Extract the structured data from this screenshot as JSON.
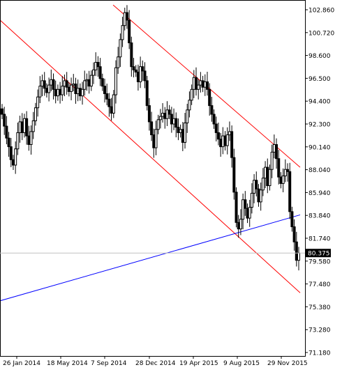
{
  "chart_data": {
    "type": "candlestick",
    "title": "",
    "xlabel": "",
    "ylabel": "",
    "ylim": [
      71.18,
      103.86
    ],
    "grid": false,
    "x_tick_labels": [
      "26 Jan 2014",
      "18 May 2014",
      "7 Sep 2014",
      "28 Dec 2014",
      "19 Apr 2015",
      "9 Aug 2015",
      "29 Nov 2015"
    ],
    "y_tick_labels": [
      "102.860",
      "100.720",
      "98.600",
      "96.500",
      "94.400",
      "92.300",
      "90.140",
      "88.040",
      "85.940",
      "83.840",
      "81.740",
      "79.580",
      "77.480",
      "75.380",
      "73.280",
      "71.180"
    ],
    "y_tick_values": [
      102.86,
      100.72,
      98.6,
      96.5,
      94.4,
      92.3,
      90.14,
      88.04,
      85.94,
      83.84,
      81.74,
      79.58,
      77.48,
      75.38,
      73.28,
      71.18
    ],
    "last_price": 80.375,
    "last_price_label": "80.375",
    "candle_colors": {
      "bull": "#ffffff",
      "bear": "#000000",
      "outline": "#000000"
    },
    "closes": [
      93.2,
      92.1,
      91.0,
      90.2,
      89.0,
      88.5,
      90.0,
      91.5,
      92.5,
      91.5,
      92.8,
      91.2,
      90.4,
      91.6,
      92.6,
      93.8,
      94.8,
      95.8,
      96.3,
      95.6,
      95.2,
      95.9,
      96.4,
      95.5,
      94.9,
      95.5,
      95.0,
      95.8,
      96.3,
      95.7,
      95.3,
      95.9,
      96.0,
      95.1,
      95.6,
      94.9,
      95.5,
      96.3,
      96.4,
      95.8,
      96.8,
      97.3,
      98.0,
      97.6,
      96.5,
      95.8,
      95.1,
      94.6,
      93.9,
      93.3,
      95.0,
      97.5,
      98.5,
      100.1,
      101.4,
      102.6,
      101.9,
      99.8,
      97.6,
      97.3,
      97.1,
      96.2,
      97.6,
      97.2,
      96.3,
      94.0,
      92.5,
      91.3,
      90.1,
      91.8,
      92.7,
      93.0,
      93.3,
      92.8,
      93.6,
      93.2,
      92.3,
      92.8,
      92.0,
      91.5,
      91.8,
      90.6,
      92.4,
      93.6,
      94.5,
      95.5,
      96.6,
      95.5,
      95.9,
      96.3,
      95.7,
      96.2,
      95.5,
      94.0,
      93.2,
      92.3,
      91.5,
      90.9,
      90.2,
      91.2,
      90.3,
      91.3,
      91.6,
      89.2,
      86.0,
      83.2,
      82.6,
      83.5,
      85.3,
      84.5,
      83.6,
      84.6,
      85.9,
      87.1,
      86.3,
      85.1,
      86.2,
      87.3,
      88.3,
      86.6,
      88.1,
      89.7,
      90.4,
      89.1,
      87.4,
      86.8,
      87.5,
      88.1,
      87.9,
      84.2,
      82.8,
      81.4,
      79.7,
      80.375
    ],
    "trendlines": [
      {
        "color": "#ff0000",
        "points": [
          [
            "2013-12-01",
            102.4
          ],
          [
            "2015-12-27",
            76.7
          ]
        ]
      },
      {
        "color": "#ff0000",
        "points": [
          [
            "2014-09-21",
            103.3
          ],
          [
            "2015-12-27",
            88.3
          ]
        ]
      },
      {
        "color": "#0000ff",
        "points": [
          [
            "2013-12-01",
            75.8
          ],
          [
            "2015-12-27",
            83.9
          ]
        ]
      }
    ]
  }
}
